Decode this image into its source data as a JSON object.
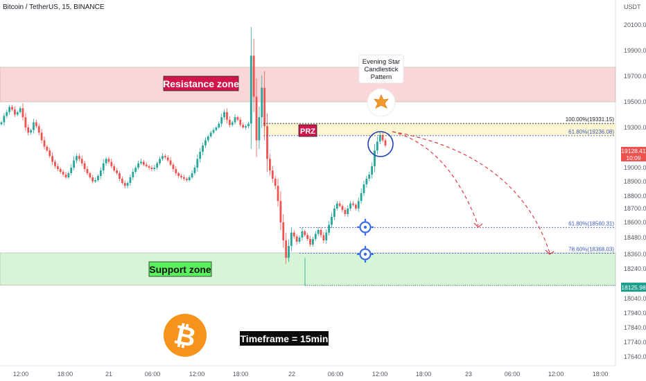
{
  "header": {
    "symbol": "Bitcoin / TetherUS, 15, BINANCE",
    "currency": "USDT"
  },
  "annotations": {
    "resistance": "Resistance zone",
    "support": "Support zone",
    "prz": "PRZ",
    "evening_star": [
      "Evening Star",
      "Candlestick",
      "Pattern"
    ],
    "timeframe": "Timeframe = 15min",
    "fib_100": "100.00%(19331.15)",
    "fib_618_top": "61.80%(19236.08)",
    "fib_618_low": "61.80%(18560.31)",
    "fib_786": "78.60%(18368.03)"
  },
  "price_badges": {
    "current_price": "19128.41",
    "countdown": "10:09",
    "support_low": "18125.98"
  },
  "colors": {
    "up": "#26a69a",
    "down": "#ef5350",
    "resistance_fill": "#f9d7d9",
    "support_fill": "#d6f5d6",
    "prz_fill": "#fdf6d2",
    "label_red": "#d0164b",
    "label_green": "#59f25e",
    "fib_blue": "#3b5bbf",
    "arrow_red": "#e0283c",
    "btc_orange": "#f7931a"
  },
  "chart_data": {
    "type": "candlestick",
    "title": "Bitcoin / TetherUS, 15, BINANCE",
    "y_axis": {
      "unit": "USDT",
      "ticks": [
        20100,
        19900,
        19700,
        19500,
        19300,
        19100,
        19000,
        18900,
        18800,
        18700,
        18600,
        18480,
        18360,
        18240,
        18040,
        17940,
        17840,
        17740,
        17640
      ]
    },
    "x_axis": {
      "ticks": [
        "12:00",
        "18:00",
        "21",
        "06:00",
        "12:00",
        "18:00",
        "22",
        "06:00",
        "12:00",
        "18:00",
        "23",
        "06:00",
        "12:00",
        "18:00"
      ]
    },
    "zones": {
      "resistance": [
        19500,
        19770
      ],
      "support": [
        18130,
        18370
      ],
      "prz": [
        19236.08,
        19331.15
      ]
    },
    "fib_levels": [
      {
        "label": "100.00%",
        "value": 19331.15
      },
      {
        "label": "61.80%",
        "value": 19236.08
      },
      {
        "label": "61.80%",
        "value": 18560.31
      },
      {
        "label": "78.60%",
        "value": 18368.03
      }
    ],
    "current_price": 19128.41,
    "support_low": 18125.98,
    "close_path": [
      19340,
      19390,
      19420,
      19460,
      19440,
      19400,
      19420,
      19450,
      19380,
      19300,
      19260,
      19280,
      19340,
      19310,
      19260,
      19200,
      19150,
      19120,
      19080,
      19040,
      19010,
      18990,
      18970,
      18950,
      18930,
      18960,
      19000,
      19050,
      19080,
      19060,
      19030,
      18990,
      18960,
      18930,
      18900,
      18910,
      18940,
      18980,
      19030,
      19060,
      19040,
      19010,
      18980,
      18960,
      18920,
      18890,
      18870,
      18890,
      18930,
      18970,
      19000,
      19030,
      19040,
      19020,
      19010,
      19000,
      18990,
      19000,
      19030,
      19060,
      19080,
      19070,
      19050,
      19020,
      18990,
      18960,
      18940,
      18930,
      18920,
      18910,
      18930,
      18960,
      19000,
      19060,
      19110,
      19160,
      19200,
      19230,
      19260,
      19280,
      19300,
      19330,
      19380,
      19420,
      19360,
      19320,
      19340,
      19380,
      19360,
      19320,
      19300,
      19310,
      19330,
      19860,
      19540,
      19200,
      19380,
      19610,
      19310,
      19060,
      18980,
      18920,
      18870,
      18760,
      18600,
      18460,
      18330,
      18420,
      18520,
      18490,
      18450,
      18480,
      18530,
      18500,
      18470,
      18430,
      18470,
      18510,
      18540,
      18500,
      18460,
      18520,
      18580,
      18640,
      18700,
      18740,
      18720,
      18690,
      18660,
      18700,
      18740,
      18730,
      18700,
      18760,
      18820,
      18880,
      18920,
      18950,
      19010,
      19120,
      19190,
      19240,
      19200,
      19160
    ]
  }
}
